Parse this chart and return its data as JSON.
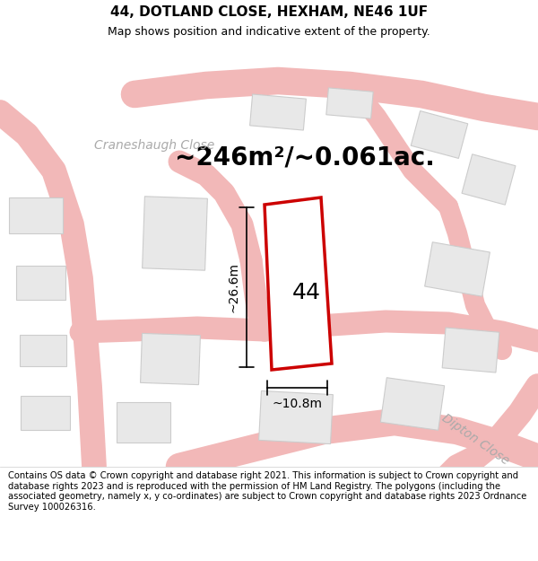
{
  "title_line1": "44, DOTLAND CLOSE, HEXHAM, NE46 1UF",
  "title_line2": "Map shows position and indicative extent of the property.",
  "footer_text": "Contains OS data © Crown copyright and database right 2021. This information is subject to Crown copyright and database rights 2023 and is reproduced with the permission of HM Land Registry. The polygons (including the associated geometry, namely x, y co-ordinates) are subject to Crown copyright and database rights 2023 Ordnance Survey 100026316.",
  "area_label": "~246m²/~0.061ac.",
  "street_label_1": "Craneshaugh Close",
  "street_label_2": "Dipton Close",
  "house_number": "44",
  "dim_vertical": "~26.6m",
  "dim_horizontal": "~10.8m",
  "bg_color": "#ffffff",
  "road_color": "#f2b8b8",
  "building_fill": "#e8e8e8",
  "building_outline": "#cccccc",
  "highlight_color": "#cc0000",
  "title_fontsize": 11,
  "subtitle_fontsize": 9,
  "footer_fontsize": 7.2,
  "area_fontsize": 20,
  "street_fontsize": 10,
  "house_fontsize": 18,
  "dim_fontsize": 10
}
